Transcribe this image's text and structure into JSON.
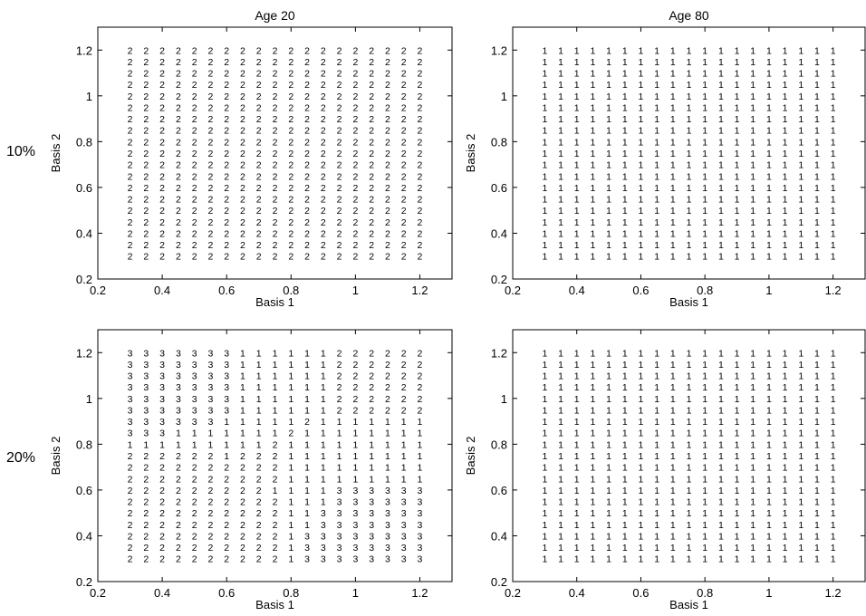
{
  "row_labels": [
    "10%",
    "20%"
  ],
  "chart_data": [
    {
      "type": "scatter",
      "title": "Age 20",
      "xlabel": "Basis 1",
      "ylabel": "Basis 2",
      "xlim": [
        0.2,
        1.3
      ],
      "ylim": [
        0.2,
        1.3
      ],
      "xticks": [
        "0.2",
        "0.4",
        "0.6",
        "0.8",
        "1",
        "1.2"
      ],
      "yticks": [
        "0.2",
        "0.4",
        "0.6",
        "0.8",
        "1",
        "1.2"
      ],
      "x": [
        0.3,
        0.35,
        0.4,
        0.45,
        0.5,
        0.55,
        0.6,
        0.65,
        0.7,
        0.75,
        0.8,
        0.85,
        0.9,
        0.95,
        1.0,
        1.05,
        1.1,
        1.15,
        1.2
      ],
      "y": [
        1.2,
        1.15,
        1.1,
        1.05,
        1.0,
        0.95,
        0.9,
        0.85,
        0.8,
        0.75,
        0.7,
        0.65,
        0.6,
        0.55,
        0.5,
        0.45,
        0.4,
        0.35,
        0.3
      ],
      "labels": [
        "2222222222222222222",
        "2222222222222222222",
        "2222222222222222222",
        "2222222222222222222",
        "2222222222222222222",
        "2222222222222222222",
        "2222222222222222222",
        "2222222222222222222",
        "2222222222222222222",
        "2222222222222222222",
        "2222222222222222222",
        "2222222222222222222",
        "2222222222222222222",
        "2222222222222222222",
        "2222222222222222222",
        "2222222222222222222",
        "2222222222222222222",
        "2222222222222222222",
        "2222222222222222222"
      ]
    },
    {
      "type": "scatter",
      "title": "Age 80",
      "xlabel": "Basis 1",
      "ylabel": "Basis 2",
      "xlim": [
        0.2,
        1.3
      ],
      "ylim": [
        0.2,
        1.3
      ],
      "xticks": [
        "0.2",
        "0.4",
        "0.6",
        "0.8",
        "1",
        "1.2"
      ],
      "yticks": [
        "0.2",
        "0.4",
        "0.6",
        "0.8",
        "1",
        "1.2"
      ],
      "x": [
        0.3,
        0.35,
        0.4,
        0.45,
        0.5,
        0.55,
        0.6,
        0.65,
        0.7,
        0.75,
        0.8,
        0.85,
        0.9,
        0.95,
        1.0,
        1.05,
        1.1,
        1.15,
        1.2
      ],
      "y": [
        1.2,
        1.15,
        1.1,
        1.05,
        1.0,
        0.95,
        0.9,
        0.85,
        0.8,
        0.75,
        0.7,
        0.65,
        0.6,
        0.55,
        0.5,
        0.45,
        0.4,
        0.35,
        0.3
      ],
      "labels": [
        "1111111111111111111",
        "1111111111111111111",
        "1111111111111111111",
        "1111111111111111111",
        "1111111111111111111",
        "1111111111111111111",
        "1111111111111111111",
        "1111111111111111111",
        "1111111111111111111",
        "1111111111111111111",
        "1111111111111111111",
        "1111111111111111111",
        "1111111111111111111",
        "1111111111111111111",
        "1111111111111111111",
        "1111111111111111111",
        "1111111111111111111",
        "1111111111111111111",
        "1111111111111111111"
      ]
    },
    {
      "type": "scatter",
      "title": "",
      "xlabel": "Basis 1",
      "ylabel": "Basis 2",
      "xlim": [
        0.2,
        1.3
      ],
      "ylim": [
        0.2,
        1.3
      ],
      "xticks": [
        "0.2",
        "0.4",
        "0.6",
        "0.8",
        "1",
        "1.2"
      ],
      "yticks": [
        "0.2",
        "0.4",
        "0.6",
        "0.8",
        "1",
        "1.2"
      ],
      "x": [
        0.3,
        0.35,
        0.4,
        0.45,
        0.5,
        0.55,
        0.6,
        0.65,
        0.7,
        0.75,
        0.8,
        0.85,
        0.9,
        0.95,
        1.0,
        1.05,
        1.1,
        1.15,
        1.2
      ],
      "y": [
        1.2,
        1.15,
        1.1,
        1.05,
        1.0,
        0.95,
        0.9,
        0.85,
        0.8,
        0.75,
        0.7,
        0.65,
        0.6,
        0.55,
        0.5,
        0.45,
        0.4,
        0.35,
        0.3
      ],
      "labels": [
        "3333333111111222222",
        "3333333111111222222",
        "3333333111111222222",
        "3333333111111222222",
        "3333333111111222222",
        "3333333111111222222",
        "3333331111121111111",
        "3331111111211111111",
        "1111111112111111111",
        "2222221222111111111",
        "2222222222111111111",
        "2222222222111111111",
        "2222222221111333333",
        "2222222222111333333",
        "2222222222113333333",
        "2222222222113333333",
        "2222222222133333333",
        "2222222222133333333",
        "2222222222133333333"
      ]
    },
    {
      "type": "scatter",
      "title": "",
      "xlabel": "Basis 1",
      "ylabel": "Basis 2",
      "xlim": [
        0.2,
        1.3
      ],
      "ylim": [
        0.2,
        1.3
      ],
      "xticks": [
        "0.2",
        "0.4",
        "0.6",
        "0.8",
        "1",
        "1.2"
      ],
      "yticks": [
        "0.2",
        "0.4",
        "0.6",
        "0.8",
        "1",
        "1.2"
      ],
      "x": [
        0.3,
        0.35,
        0.4,
        0.45,
        0.5,
        0.55,
        0.6,
        0.65,
        0.7,
        0.75,
        0.8,
        0.85,
        0.9,
        0.95,
        1.0,
        1.05,
        1.1,
        1.15,
        1.2
      ],
      "y": [
        1.2,
        1.15,
        1.1,
        1.05,
        1.0,
        0.95,
        0.9,
        0.85,
        0.8,
        0.75,
        0.7,
        0.65,
        0.6,
        0.55,
        0.5,
        0.45,
        0.4,
        0.35,
        0.3
      ],
      "labels": [
        "1111111111111111111",
        "1111111111111111111",
        "1111111111111111111",
        "1111111111111111111",
        "1111111111111111111",
        "1111111111111111111",
        "1111111111111111111",
        "1111111111111111111",
        "1111111111111111111",
        "1111111111111111111",
        "1111111111111111111",
        "1111111111111111111",
        "1111111111111111111",
        "1111111111111111111",
        "1111111111111111111",
        "1111111111111111111",
        "1111111111111111111",
        "1111111111111111111",
        "1111111111111111111"
      ]
    }
  ]
}
